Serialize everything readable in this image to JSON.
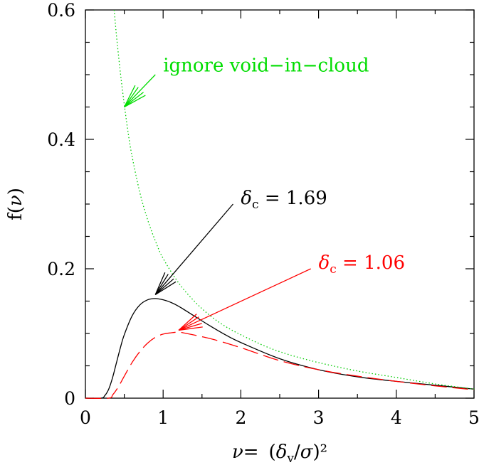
{
  "chart_data": {
    "type": "line",
    "xlabel": {
      "nu": "ν",
      "eq": "=",
      "lpar": "(",
      "delta": "δ",
      "sub": "v",
      "slash": "/",
      "sigma": "σ",
      "rpar_sq": ")²"
    },
    "ylabel": {
      "f": "f",
      "lpar": "(",
      "nu": "ν",
      "rpar": ")"
    },
    "xlim": [
      0,
      5
    ],
    "ylim": [
      0,
      0.6
    ],
    "x_ticks": [
      0,
      1,
      2,
      3,
      4,
      5
    ],
    "x_tick_labels": [
      "0",
      "1",
      "2",
      "3",
      "4",
      "5"
    ],
    "y_ticks": [
      0,
      0.2,
      0.4,
      0.6
    ],
    "y_tick_labels": [
      "0",
      "0.2",
      "0.4",
      "0.6"
    ],
    "series": [
      {
        "style": "solid",
        "color": "#000000",
        "x": [
          0.2,
          0.25,
          0.3,
          0.35,
          0.4,
          0.45,
          0.5,
          0.6,
          0.7,
          0.8,
          0.9,
          1.0,
          1.1,
          1.2,
          1.4,
          1.6,
          1.8,
          2.0,
          2.5,
          3.0,
          3.5,
          4.0,
          4.5,
          5.0
        ],
        "y": [
          0.0,
          0.004,
          0.014,
          0.032,
          0.055,
          0.078,
          0.098,
          0.127,
          0.144,
          0.152,
          0.154,
          0.152,
          0.148,
          0.142,
          0.127,
          0.112,
          0.098,
          0.086,
          0.061,
          0.044,
          0.033,
          0.026,
          0.02,
          0.014
        ]
      },
      {
        "style": "dashed",
        "color": "#ff0000",
        "x": [
          0.3,
          0.35,
          0.4,
          0.45,
          0.5,
          0.6,
          0.7,
          0.8,
          0.9,
          1.0,
          1.1,
          1.2,
          1.3,
          1.5,
          1.7,
          2.0,
          2.5,
          3.0,
          3.5,
          4.0,
          4.5,
          5.0
        ],
        "y": [
          0.0,
          0.005,
          0.013,
          0.023,
          0.034,
          0.055,
          0.072,
          0.085,
          0.094,
          0.099,
          0.101,
          0.102,
          0.1,
          0.095,
          0.089,
          0.078,
          0.058,
          0.044,
          0.034,
          0.026,
          0.019,
          0.013
        ]
      },
      {
        "style": "dotted",
        "color": "#00cc00",
        "x": [
          0.37,
          0.4,
          0.45,
          0.5,
          0.55,
          0.6,
          0.7,
          0.8,
          0.9,
          1.0,
          1.2,
          1.4,
          1.6,
          1.8,
          2.0,
          2.3,
          2.6,
          3.0,
          3.5,
          4.0,
          4.5,
          5.0
        ],
        "y": [
          0.6,
          0.56,
          0.503,
          0.454,
          0.41,
          0.374,
          0.318,
          0.276,
          0.243,
          0.216,
          0.178,
          0.15,
          0.128,
          0.111,
          0.098,
          0.081,
          0.068,
          0.055,
          0.042,
          0.032,
          0.022,
          0.014
        ]
      }
    ],
    "annotations": [
      {
        "id": "void",
        "color": "#00dd00",
        "text": "ignore void−in−cloud",
        "text_pos": [
          1.0,
          0.505
        ],
        "arrow_from": [
          0.9,
          0.5
        ],
        "arrow_to": [
          0.5,
          0.45
        ]
      },
      {
        "id": "dc169",
        "color": "#000000",
        "delta": "δ",
        "sub": "c",
        "rest": " =  1.69",
        "text_pos": [
          2.0,
          0.3
        ],
        "arrow_from": [
          1.9,
          0.3
        ],
        "arrow_to": [
          0.9,
          0.16
        ]
      },
      {
        "id": "dc106",
        "color": "#ff0000",
        "delta": "δ",
        "sub": "c",
        "rest": " =  1.06",
        "text_pos": [
          3.0,
          0.2
        ],
        "arrow_from": [
          2.9,
          0.2
        ],
        "arrow_to": [
          1.2,
          0.105
        ]
      }
    ]
  }
}
